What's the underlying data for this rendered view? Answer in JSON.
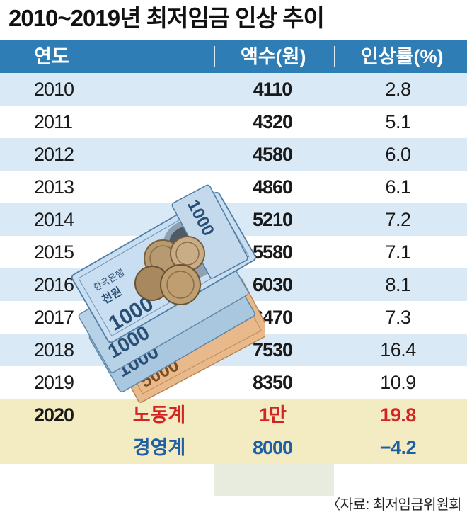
{
  "title": "2010~2019년 최저임금 인상 추이",
  "header": {
    "year": "연도",
    "amount": "액수(원)",
    "rate": "인상률(%)"
  },
  "rows": [
    {
      "year": "2010",
      "amount": "4110",
      "rate": "2.8"
    },
    {
      "year": "2011",
      "amount": "4320",
      "rate": "5.1"
    },
    {
      "year": "2012",
      "amount": "4580",
      "rate": "6.0"
    },
    {
      "year": "2013",
      "amount": "4860",
      "rate": "6.1"
    },
    {
      "year": "2014",
      "amount": "5210",
      "rate": "7.2"
    },
    {
      "year": "2015",
      "amount": "5580",
      "rate": "7.1"
    },
    {
      "year": "2016",
      "amount": "6030",
      "rate": "8.1"
    },
    {
      "year": "2017",
      "amount": "6470",
      "rate": "7.3"
    },
    {
      "year": "2018",
      "amount": "7530",
      "rate": "16.4"
    },
    {
      "year": "2019",
      "amount": "8350",
      "rate": "10.9"
    }
  ],
  "proposal_2020": {
    "year": "2020",
    "labor": {
      "group": "노동계",
      "amount": "1만",
      "rate": "19.8"
    },
    "management": {
      "group": "경영계",
      "amount": "8000",
      "rate": "−4.2"
    }
  },
  "source": "〈자료: 최저임금위원회",
  "colors": {
    "header": "#2f7db5",
    "stripe": "#d9e9f6",
    "proposal": "#f3ebc2",
    "labor": "#d42323",
    "management": "#1f5fa6"
  },
  "illustration": {
    "banknote_1000": "1000",
    "banknote_5000": "5000",
    "bank_name": "한국은행",
    "denomination_word": "천원"
  }
}
